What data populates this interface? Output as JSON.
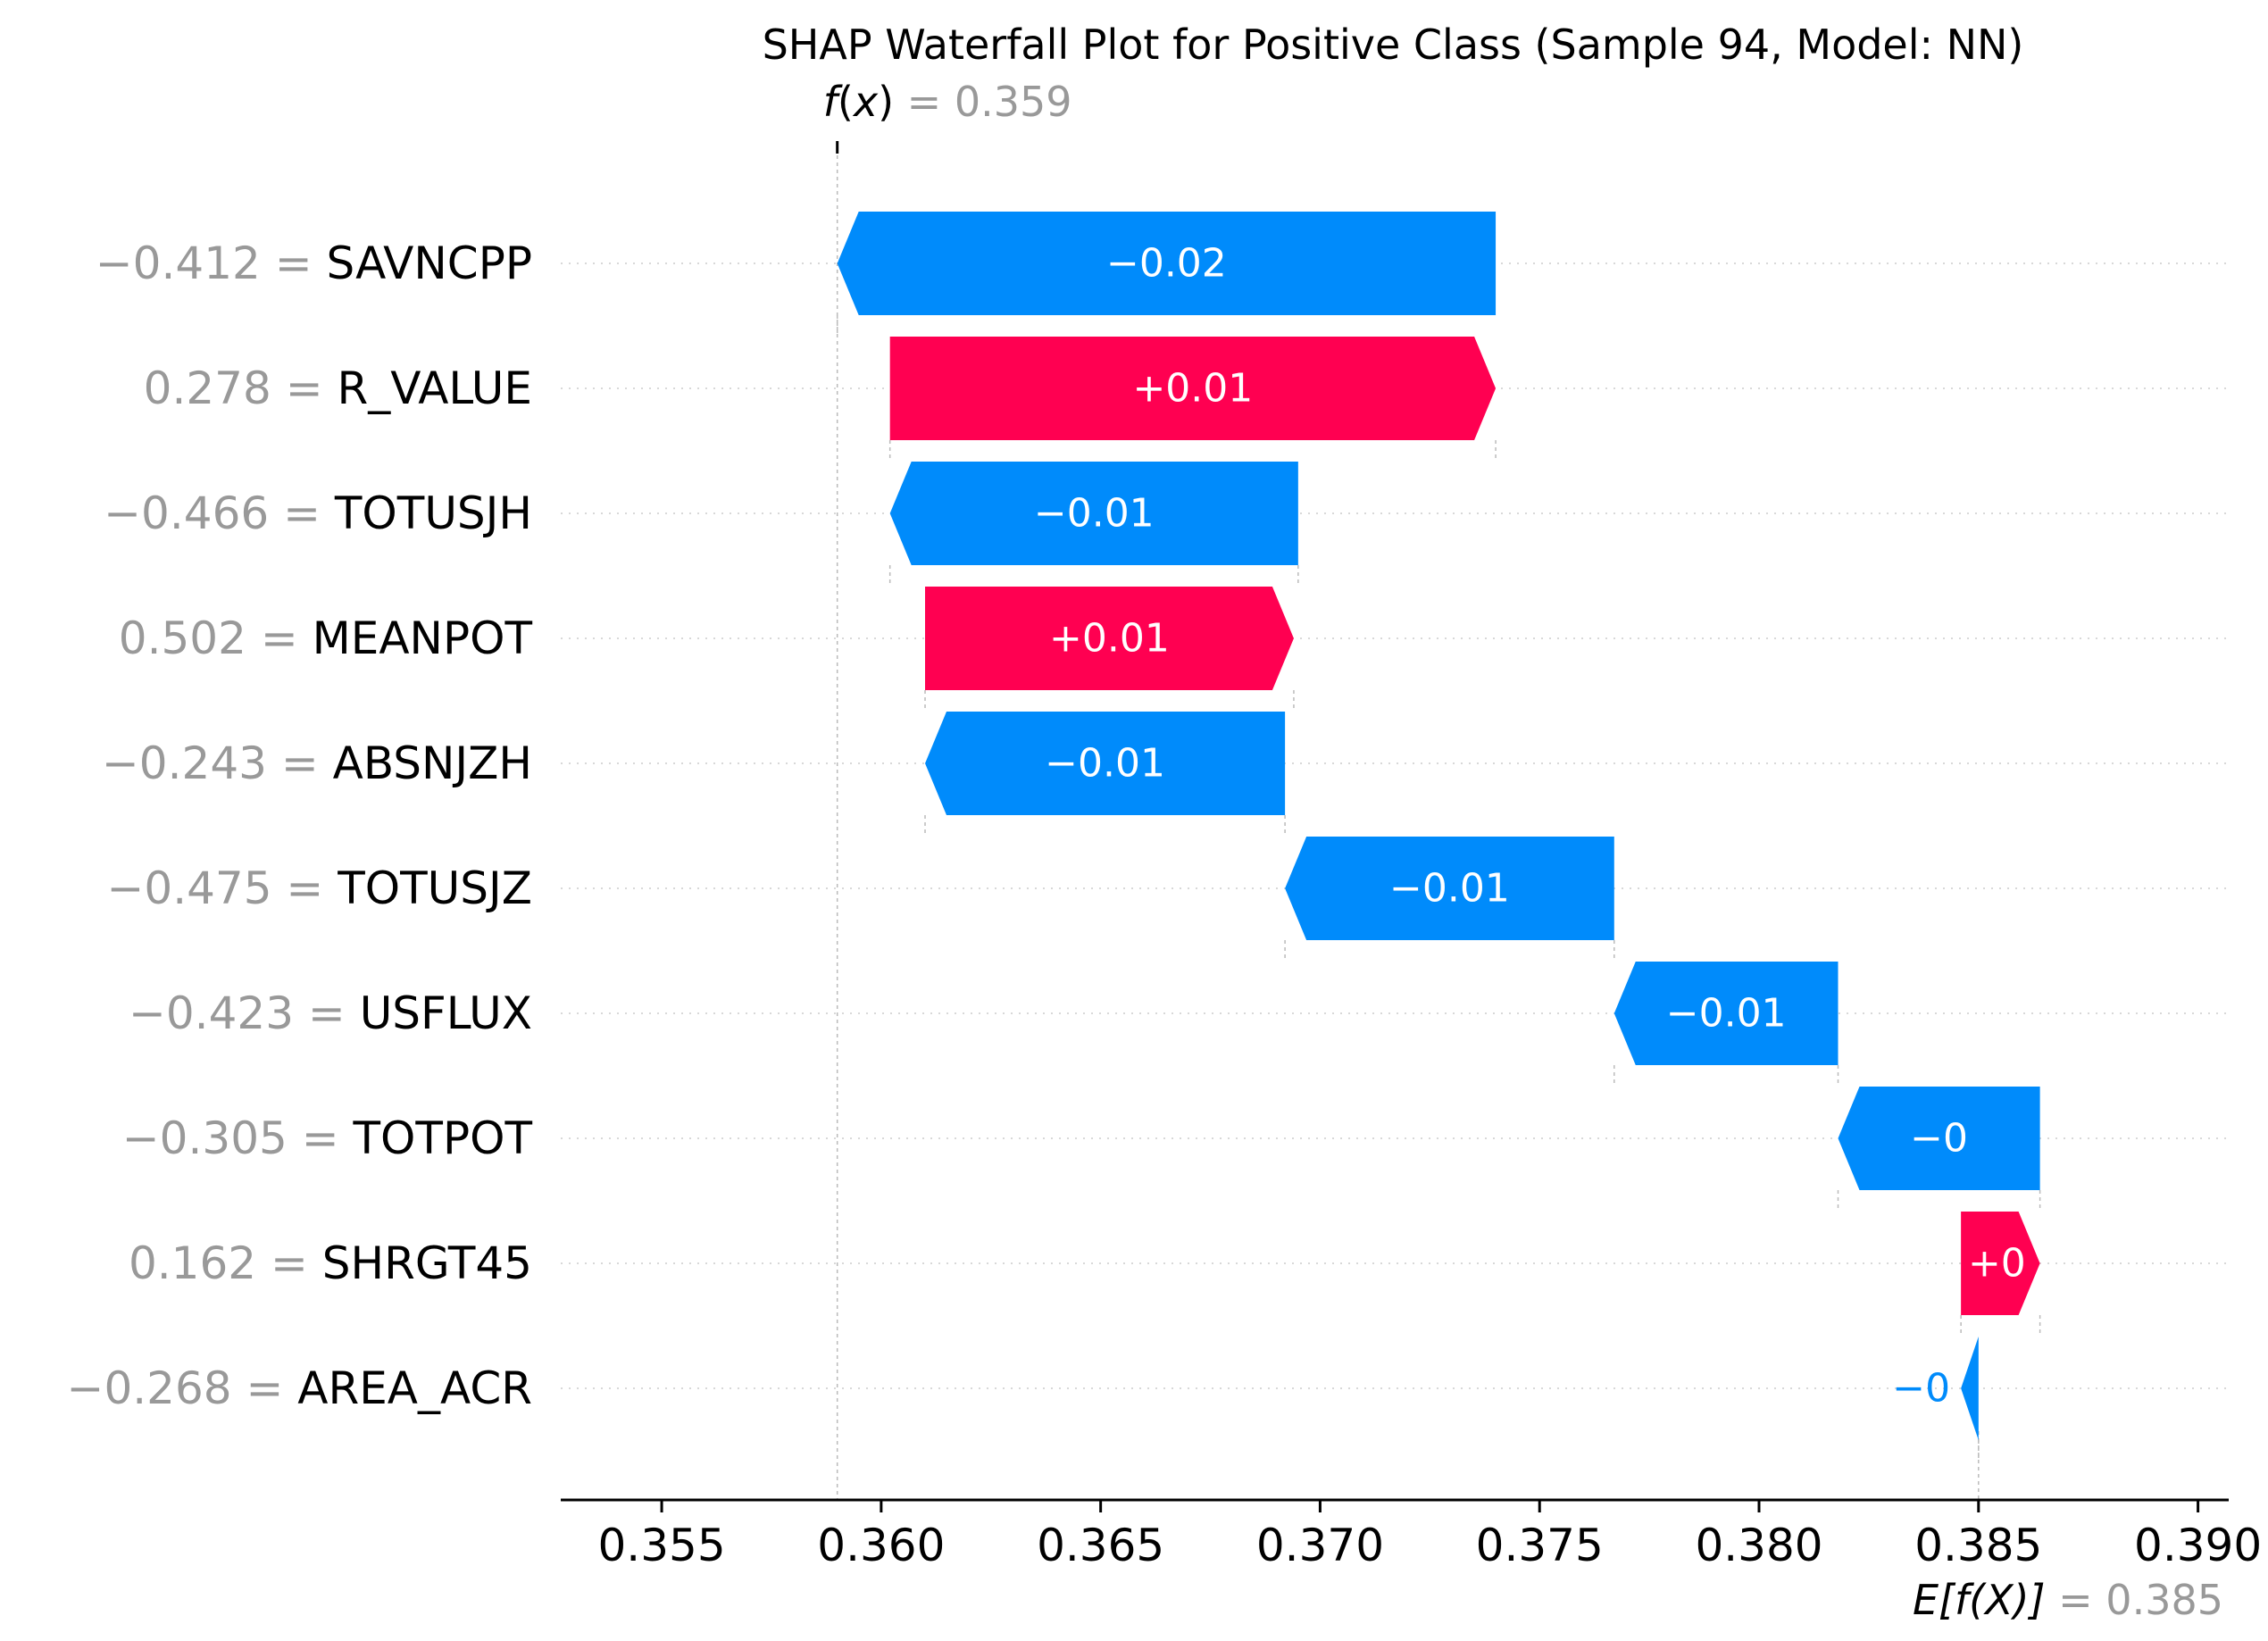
{
  "chart_data": {
    "type": "waterfall",
    "title": "SHAP Waterfall Plot for Positive Class (Sample 94, Model: NN)",
    "fx": {
      "label_main": "f",
      "label_arg": "x",
      "eq": "= 0.359",
      "value": 0.359
    },
    "efx": {
      "label_main": "E[f(X)]",
      "eq": "= 0.385",
      "value": 0.385
    },
    "xlim": [
      0.3527,
      0.3907
    ],
    "xticks": [
      {
        "value": 0.355,
        "label": "0.355"
      },
      {
        "value": 0.36,
        "label": "0.360"
      },
      {
        "value": 0.365,
        "label": "0.365"
      },
      {
        "value": 0.37,
        "label": "0.370"
      },
      {
        "value": 0.375,
        "label": "0.375"
      },
      {
        "value": 0.38,
        "label": "0.380"
      },
      {
        "value": 0.385,
        "label": "0.385"
      },
      {
        "value": 0.39,
        "label": "0.390"
      }
    ],
    "features": [
      {
        "name": "SAVNCPP",
        "value_label": "−0.412 =",
        "shap": -0.015,
        "shap_label": "−0.02",
        "end": 0.374
      },
      {
        "name": "R_VALUE",
        "value_label": "0.278 =",
        "shap": 0.0138,
        "shap_label": "+0.01",
        "end": 0.3602
      },
      {
        "name": "TOTUSJH",
        "value_label": "−0.466 =",
        "shap": -0.0093,
        "shap_label": "−0.01",
        "end": 0.3695
      },
      {
        "name": "MEANPOT",
        "value_label": "0.502 =",
        "shap": 0.0084,
        "shap_label": "+0.01",
        "end": 0.361
      },
      {
        "name": "ABSNJZH",
        "value_label": "−0.243 =",
        "shap": -0.0082,
        "shap_label": "−0.01",
        "end": 0.3692
      },
      {
        "name": "TOTUSJZ",
        "value_label": "−0.475 =",
        "shap": -0.0075,
        "shap_label": "−0.01",
        "end": 0.3767
      },
      {
        "name": "USFLUX",
        "value_label": "−0.423 =",
        "shap": -0.0051,
        "shap_label": "−0.01",
        "end": 0.3818
      },
      {
        "name": "TOTPOT",
        "value_label": "−0.305 =",
        "shap": -0.0046,
        "shap_label": "−0",
        "end": 0.3864
      },
      {
        "name": "SHRGT45",
        "value_label": "0.162 =",
        "shap": 0.0018,
        "shap_label": "+0",
        "end": 0.3846
      },
      {
        "name": "AREA_ACR",
        "value_label": "−0.268 =",
        "shap": -0.0004,
        "shap_label": "−0",
        "end": 0.385
      }
    ],
    "colors": {
      "positive": "#ff0051",
      "negative": "#008bfb",
      "muted": "#999999",
      "text": "#000000"
    }
  }
}
